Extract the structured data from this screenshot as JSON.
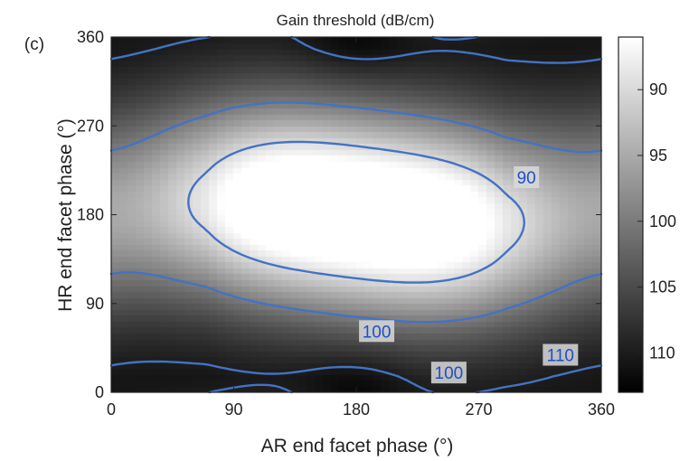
{
  "panel_label": "(c)",
  "chart_data": {
    "type": "heatmap",
    "title": "Gain threshold (dB/cm)",
    "xlabel": "AR end facet phase (°)",
    "ylabel": "HR end facet phase (°)",
    "xlim": [
      0,
      360
    ],
    "ylim": [
      0,
      360
    ],
    "x_ticks": [
      0,
      90,
      180,
      270,
      360
    ],
    "y_ticks": [
      0,
      90,
      180,
      270,
      360
    ],
    "colorbar": {
      "min": 86,
      "max": 113,
      "ticks": [
        90,
        95,
        100,
        105,
        110
      ],
      "colormap": "gray, reversed (low gain = white, high gain = black)"
    },
    "contour_color": "#4472c4",
    "contour_levels": [
      90,
      100,
      110
    ],
    "contour_labels": [
      {
        "level": "90",
        "x": 305,
        "y": 218
      },
      {
        "level": "100",
        "x": 195,
        "y": 62
      },
      {
        "level": "100",
        "x": 248,
        "y": 20
      },
      {
        "level": "110",
        "x": 330,
        "y": 38
      }
    ],
    "minima": [
      {
        "x": 110,
        "y": 195,
        "value": 86
      },
      {
        "x": 250,
        "y": 170,
        "value": 86
      }
    ]
  }
}
